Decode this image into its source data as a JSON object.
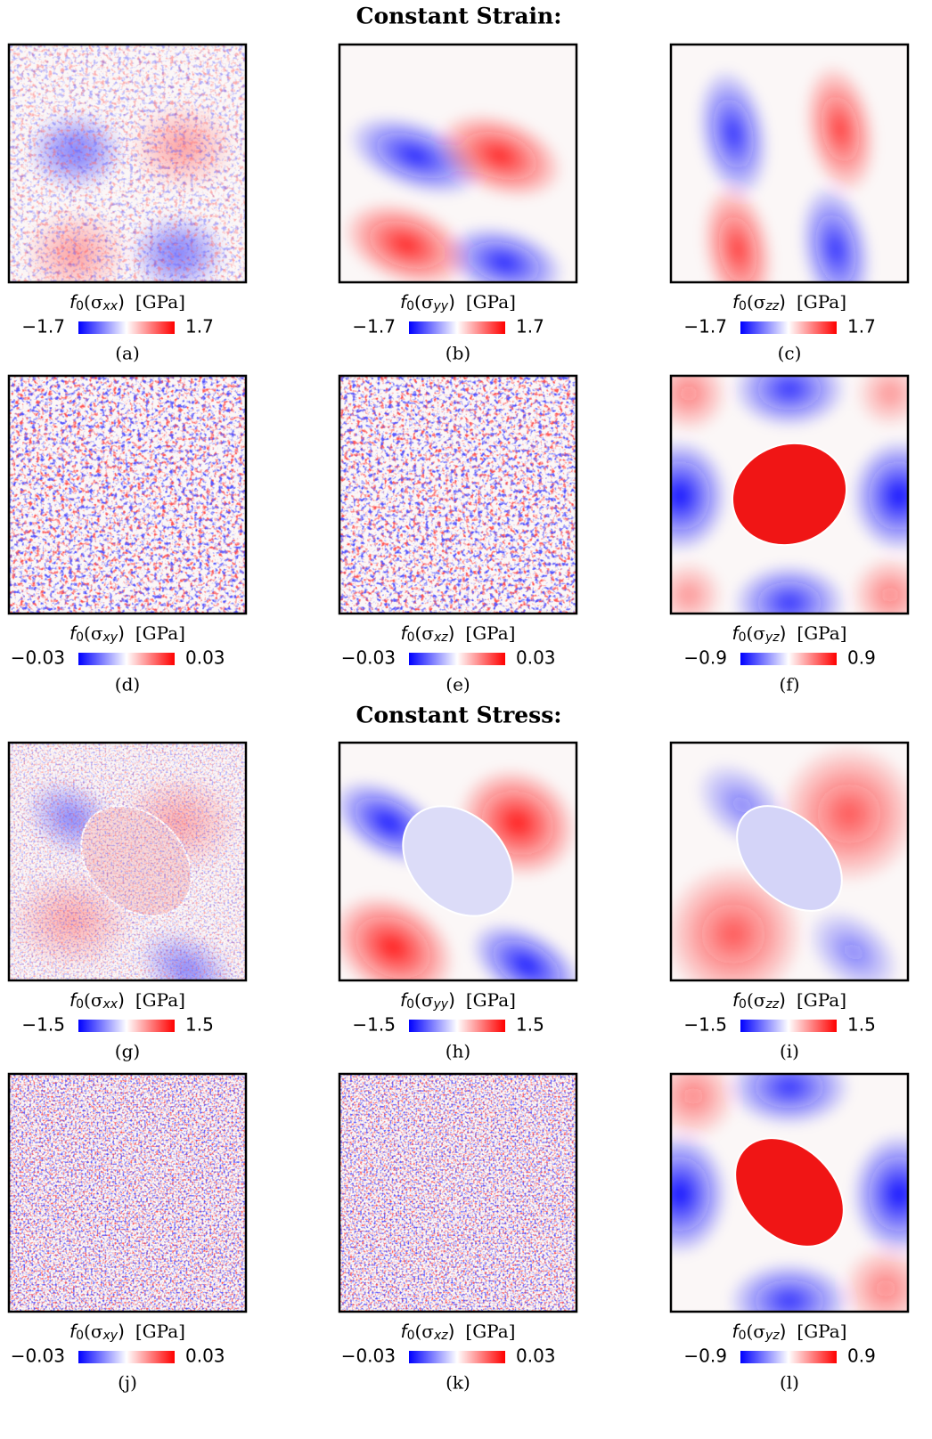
{
  "sections": [
    {
      "title": "Constant Strain:",
      "panels": [
        {
          "label": [
            "f",
            "0",
            "(σ",
            "xx",
            ")",
            "[GPa]"
          ],
          "clim": [
            {
              "value": -1.7,
              "label": "−1.7"
            },
            1.7
          ],
          "tag": "(a)"
        },
        {
          "label": [
            "f",
            "0",
            "(σ",
            "yy",
            ")",
            "[GPa]"
          ],
          "clim": [
            {
              "value": -1.7,
              "label": "−1.7"
            },
            1.7
          ],
          "tag": "(b)"
        },
        {
          "label": [
            "f",
            "0",
            "(σ",
            "zz",
            ")",
            "[GPa]"
          ],
          "clim": [
            {
              "value": -1.7,
              "label": "−1.7"
            },
            1.7
          ],
          "tag": "(c)"
        },
        {
          "label": [
            "f",
            "0",
            "(σ",
            "xy",
            ")",
            "[GPa]"
          ],
          "clim": [
            {
              "value": -0.03,
              "label": "−0.03"
            },
            0.03
          ],
          "tag": "(d)"
        },
        {
          "label": [
            "f",
            "0",
            "(σ",
            "xz",
            ")",
            "[GPa]"
          ],
          "clim": [
            {
              "value": -0.03,
              "label": "−0.03"
            },
            0.03
          ],
          "tag": "(e)"
        },
        {
          "label": [
            "f",
            "0",
            "(σ",
            "yz",
            ")",
            "[GPa]"
          ],
          "clim": [
            {
              "value": -0.9,
              "label": "−0.9"
            },
            0.9
          ],
          "tag": "(f)"
        }
      ]
    },
    {
      "title": "Constant Stress:",
      "panels": [
        {
          "label": [
            "f",
            "0",
            "(σ",
            "xx",
            ")",
            "[GPa]"
          ],
          "clim": [
            {
              "value": -1.5,
              "label": "−1.5"
            },
            1.5
          ],
          "tag": "(g)"
        },
        {
          "label": [
            "f",
            "0",
            "(σ",
            "yy",
            ")",
            "[GPa]"
          ],
          "clim": [
            {
              "value": -1.5,
              "label": "−1.5"
            },
            1.5
          ],
          "tag": "(h)"
        },
        {
          "label": [
            "f",
            "0",
            "(σ",
            "zz",
            ")",
            "[GPa]"
          ],
          "clim": [
            {
              "value": -1.5,
              "label": "−1.5"
            },
            1.5
          ],
          "tag": "(i)"
        },
        {
          "label": [
            "f",
            "0",
            "(σ",
            "xy",
            ")",
            "[GPa]"
          ],
          "clim": [
            {
              "value": -0.03,
              "label": "−0.03"
            },
            0.03
          ],
          "tag": "(j)"
        },
        {
          "label": [
            "f",
            "0",
            "(σ",
            "xz",
            ")",
            "[GPa]"
          ],
          "clim": [
            {
              "value": -0.03,
              "label": "−0.03"
            },
            0.03
          ],
          "tag": "(k)"
        },
        {
          "label": [
            "f",
            "0",
            "(σ",
            "yz",
            ")",
            "[GPa]"
          ],
          "clim": [
            {
              "value": -0.9,
              "label": "−0.9"
            },
            0.9
          ],
          "tag": "(l)"
        }
      ]
    }
  ]
}
